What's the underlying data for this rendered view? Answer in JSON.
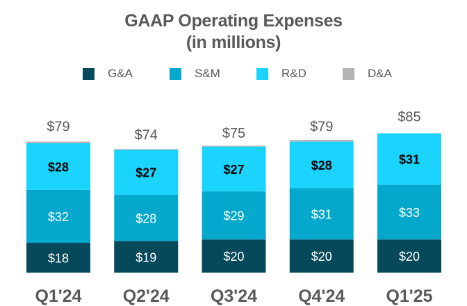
{
  "chart_data": {
    "type": "bar",
    "stacked": true,
    "title": "GAAP Operating Expenses",
    "subtitle": "(in millions)",
    "xlabel": "",
    "ylabel": "",
    "grid": false,
    "legend_position": "top",
    "categories": [
      "Q1'24",
      "Q2'24",
      "Q3'24",
      "Q4'24",
      "Q1'25"
    ],
    "series": [
      {
        "name": "G&A",
        "color": "#06495a",
        "values": [
          18,
          19,
          20,
          20,
          20
        ],
        "labels": [
          "$18",
          "$19",
          "$20",
          "$20",
          "$20"
        ],
        "label_color": "#ffffff"
      },
      {
        "name": "S&M",
        "color": "#05a8cd",
        "values": [
          32,
          28,
          29,
          31,
          33
        ],
        "labels": [
          "$32",
          "$28",
          "$29",
          "$31",
          "$33"
        ],
        "label_color": "#ffffff"
      },
      {
        "name": "R&D",
        "color": "#1ad4fd",
        "values": [
          28,
          27,
          27,
          28,
          31
        ],
        "labels": [
          "$28",
          "$27",
          "$27",
          "$28",
          "$31"
        ],
        "label_color": "#000000"
      },
      {
        "name": "D&A",
        "color": "#b4b4b4",
        "values": [
          1,
          0.5,
          0.5,
          1,
          0
        ],
        "labels": [
          "",
          "",
          "",
          "",
          ""
        ],
        "label_color": "#595959"
      }
    ],
    "totals": [
      79,
      74,
      75,
      79,
      85
    ],
    "total_labels": [
      "$79",
      "$74",
      "$75",
      "$79",
      "$85"
    ],
    "ylim": [
      0,
      85
    ]
  }
}
